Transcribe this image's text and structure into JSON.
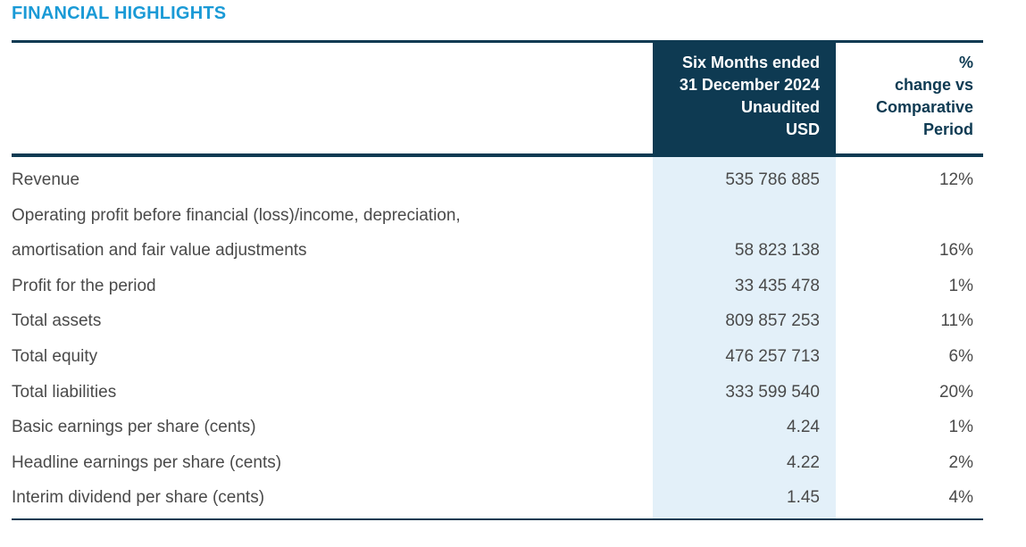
{
  "title": "FINANCIAL HIGHLIGHTS",
  "header": {
    "col1": [
      "Six Months ended",
      "31 December 2024",
      "Unaudited",
      "USD"
    ],
    "col2": [
      "%",
      "change vs",
      "Comparative",
      "Period"
    ]
  },
  "rows": [
    {
      "label": "Revenue",
      "value": "535 786 885",
      "pct": "12%"
    },
    {
      "label": "Operating profit before financial (loss)/income, depreciation,",
      "value": "",
      "pct": ""
    },
    {
      "label": "amortisation and fair value adjustments",
      "value": "58 823 138",
      "pct": "16%"
    },
    {
      "label": "Profit for the period",
      "value": "33 435 478",
      "pct": "1%"
    },
    {
      "label": "Total assets",
      "value": "809 857 253",
      "pct": "11%"
    },
    {
      "label": "Total equity",
      "value": "476 257 713",
      "pct": "6%"
    },
    {
      "label": "Total liabilities",
      "value": "333 599 540",
      "pct": "20%"
    },
    {
      "label": "Basic earnings per share (cents)",
      "value": "4.24",
      "pct": "1%"
    },
    {
      "label": "Headline earnings per share (cents)",
      "value": "4.22",
      "pct": "2%"
    },
    {
      "label": "Interim dividend per share (cents)",
      "value": "1.45",
      "pct": "4%"
    }
  ],
  "colors": {
    "accent": "#1a9ad6",
    "navy": "#0e3a52",
    "shade": "#e3f0f9"
  }
}
